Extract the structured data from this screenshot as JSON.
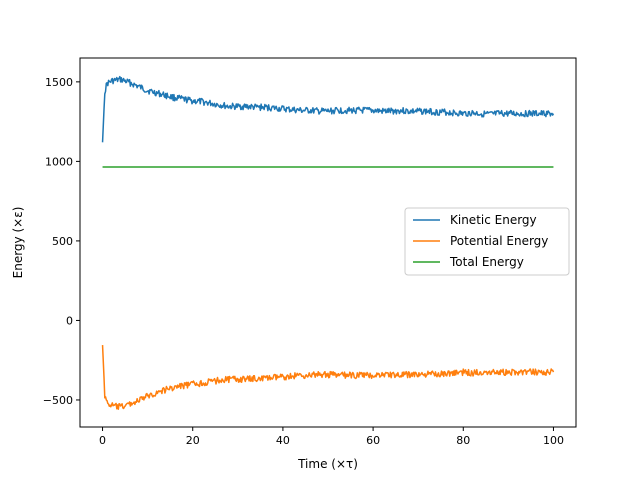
{
  "chart_data": {
    "type": "line",
    "title": "",
    "xlabel": "Time (×τ)",
    "ylabel": "Energy (×ε)",
    "xlim": [
      -5,
      105
    ],
    "ylim": [
      -670,
      1650
    ],
    "xticks": [
      0,
      20,
      40,
      60,
      80,
      100
    ],
    "xtick_labels": [
      "0",
      "20",
      "40",
      "60",
      "80",
      "100"
    ],
    "yticks": [
      -500,
      0,
      500,
      1000,
      1500
    ],
    "ytick_labels": [
      "−500",
      "0",
      "500",
      "1000",
      "1500"
    ],
    "grid": false,
    "legend_position": "center-right",
    "x": [
      0,
      0.5,
      1,
      2,
      3,
      4,
      5,
      6,
      8,
      10,
      12,
      14,
      16,
      18,
      20,
      22,
      24,
      26,
      28,
      30,
      32,
      34,
      36,
      38,
      40,
      42,
      44,
      46,
      48,
      50,
      52,
      54,
      56,
      58,
      60,
      62,
      64,
      66,
      68,
      70,
      72,
      74,
      76,
      78,
      80,
      82,
      84,
      86,
      88,
      90,
      92,
      94,
      96,
      98,
      100
    ],
    "series": [
      {
        "name": "Kinetic Energy",
        "color": "#1f77b4",
        "values": [
          1120,
          1440,
          1490,
          1505,
          1510,
          1515,
          1505,
          1495,
          1470,
          1445,
          1430,
          1415,
          1400,
          1390,
          1380,
          1375,
          1365,
          1355,
          1345,
          1345,
          1345,
          1340,
          1340,
          1335,
          1330,
          1325,
          1320,
          1320,
          1315,
          1315,
          1320,
          1320,
          1320,
          1320,
          1320,
          1315,
          1315,
          1320,
          1315,
          1315,
          1315,
          1310,
          1310,
          1305,
          1300,
          1305,
          1300,
          1295,
          1300,
          1300,
          1300,
          1300,
          1300,
          1300,
          1300
        ]
      },
      {
        "name": "Potential Energy",
        "color": "#ff7f0e",
        "values": [
          -155,
          -470,
          -520,
          -535,
          -540,
          -545,
          -535,
          -525,
          -505,
          -475,
          -455,
          -435,
          -420,
          -410,
          -400,
          -395,
          -385,
          -375,
          -370,
          -370,
          -370,
          -365,
          -365,
          -360,
          -355,
          -350,
          -345,
          -345,
          -340,
          -340,
          -345,
          -345,
          -345,
          -345,
          -345,
          -340,
          -340,
          -345,
          -340,
          -340,
          -340,
          -335,
          -335,
          -330,
          -325,
          -330,
          -325,
          -320,
          -325,
          -325,
          -325,
          -325,
          -325,
          -325,
          -325
        ]
      },
      {
        "name": "Total Energy",
        "color": "#2ca02c",
        "values": [
          965,
          965,
          965,
          965,
          965,
          965,
          965,
          965,
          965,
          965,
          965,
          965,
          965,
          965,
          965,
          965,
          965,
          965,
          965,
          965,
          965,
          965,
          965,
          965,
          965,
          965,
          965,
          965,
          965,
          965,
          965,
          965,
          965,
          965,
          965,
          965,
          965,
          965,
          965,
          965,
          965,
          965,
          965,
          965,
          965,
          965,
          965,
          965,
          965,
          965,
          965,
          965,
          965,
          965,
          965
        ]
      }
    ]
  }
}
